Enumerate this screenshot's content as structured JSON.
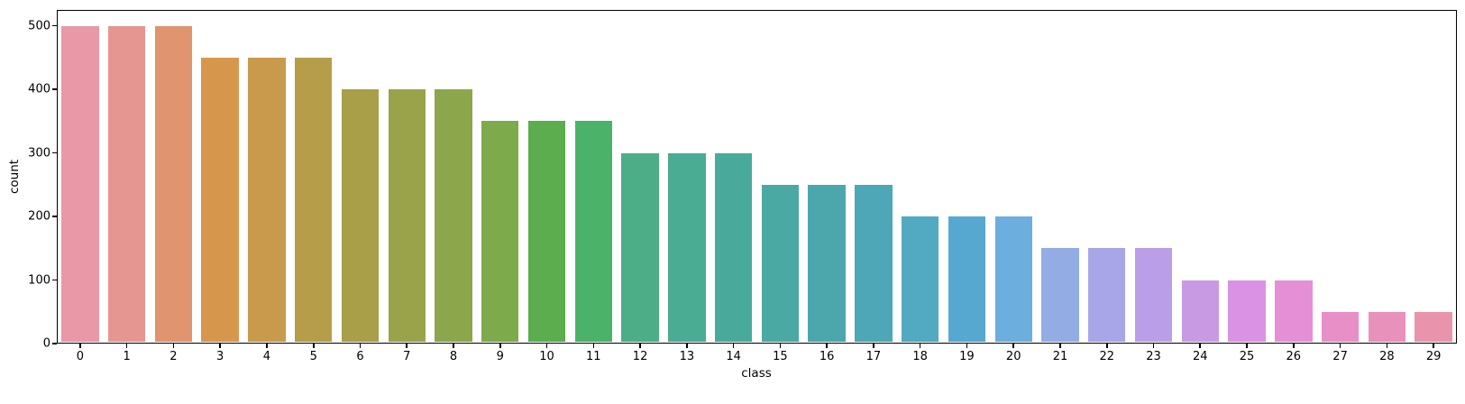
{
  "chart_data": {
    "type": "bar",
    "title": "",
    "xlabel": "class",
    "ylabel": "count",
    "categories": [
      "0",
      "1",
      "2",
      "3",
      "4",
      "5",
      "6",
      "7",
      "8",
      "9",
      "10",
      "11",
      "12",
      "13",
      "14",
      "15",
      "16",
      "17",
      "18",
      "19",
      "20",
      "21",
      "22",
      "23",
      "24",
      "25",
      "26",
      "27",
      "28",
      "29"
    ],
    "values": [
      500,
      500,
      500,
      450,
      450,
      450,
      400,
      400,
      400,
      350,
      350,
      350,
      300,
      300,
      300,
      250,
      250,
      250,
      200,
      200,
      200,
      150,
      150,
      150,
      100,
      100,
      100,
      50,
      50,
      50
    ],
    "bar_colors": [
      "#e998a8",
      "#e69691",
      "#e09470",
      "#d6974d",
      "#c99a4c",
      "#b59d4a",
      "#a89f48",
      "#9aa34a",
      "#8ca74b",
      "#7daa4b",
      "#5bad4e",
      "#4bb269",
      "#4bae87",
      "#4aac93",
      "#49aa9b",
      "#4aa9a3",
      "#4ba7ac",
      "#4da7b6",
      "#52a9c2",
      "#57a8d1",
      "#6caede",
      "#93ace4",
      "#a8a6e8",
      "#ba9fe8",
      "#c89ae4",
      "#da93e4",
      "#e58fd6",
      "#e88fc8",
      "#e891ba",
      "#e994ac"
    ],
    "yticks": [
      0,
      100,
      200,
      300,
      400,
      500
    ],
    "ylim": [
      0,
      525
    ],
    "grid": false,
    "legend": null,
    "bar_width_fraction": 0.8,
    "background_color": "#ffffff",
    "spine_color": "#000000"
  }
}
